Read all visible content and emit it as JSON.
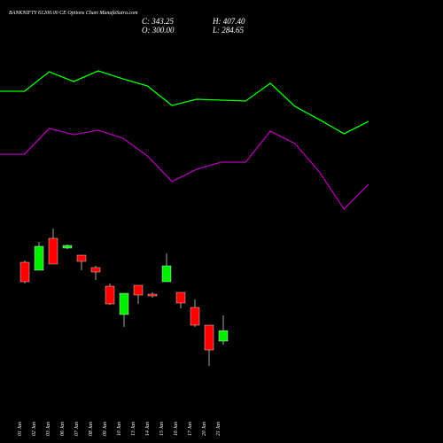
{
  "chart_data": [
    {
      "type": "candlestick",
      "title": "BANKNIFTY 61200.00 CE Options Chart MunafaSutra.com",
      "annotations": [
        "C: 343.25",
        "O: 300.00",
        "H: 407.40",
        "L: 284.65"
      ],
      "categories": [
        "01 Jan",
        "02 Jan",
        "03 Jan",
        "06 Jan",
        "07 Jan",
        "08 Jan",
        "09 Jan",
        "10 Jan",
        "13 Jan",
        "14 Jan",
        "15 Jan",
        "16 Jan",
        "17 Jan",
        "20 Jan",
        "21 Jan"
      ],
      "open": [
        629.3,
        596,
        729.2,
        688.5,
        658.9,
        607.1,
        529.4,
        411,
        533.1,
        496.1,
        547.9,
        503.5,
        440.6,
        366.6,
        300
      ],
      "close": [
        547.9,
        695.9,
        621.9,
        699.6,
        633,
        588.6,
        455.4,
        499.8,
        492.4,
        488.7,
        614.5,
        459.1,
        366.6,
        263,
        343.25
      ],
      "high": [
        636.7,
        714.4,
        769.9,
        703.3,
        658.9,
        614.5,
        540.5,
        499.8,
        533.1,
        503.5,
        666.3,
        503.5,
        473.9,
        366.6,
        407.4
      ],
      "low": [
        540.5,
        596,
        621.9,
        684.8,
        596,
        555.3,
        451.7,
        359.2,
        455.4,
        481.3,
        547.9,
        436.9,
        359.2,
        196.4,
        284.65
      ],
      "up_color": "#00ee00",
      "down_color": "#ff0000",
      "ylim": [
        -125.5,
        1724.5
      ]
    },
    {
      "type": "line",
      "categories": [
        null,
        null,
        null,
        null,
        null,
        null,
        null,
        null,
        null,
        null,
        null,
        null,
        null,
        null,
        null,
        null
      ],
      "series": [
        {
          "color": "#00ff00",
          "values": [
            1343.4,
            1343.4,
            1424.8,
            1384.1,
            1428.5,
            1395.2,
            1365.6,
            1284.2,
            1310.1,
            1306.4,
            1302.7,
            1376.7,
            1280.5,
            1225,
            1165.8,
            1217.6
          ]
        },
        {
          "color": "#b000b0",
          "values": [
            1080.7,
            1080.7,
            1188,
            1162.1,
            1180.6,
            1147.3,
            1073.3,
            966,
            1017.8,
            1047.4,
            1047.4,
            1176.9,
            1125.1,
            1006.7,
            851.3,
            954.9
          ]
        }
      ],
      "ylim": [
        -125.5,
        1724.5
      ]
    }
  ]
}
